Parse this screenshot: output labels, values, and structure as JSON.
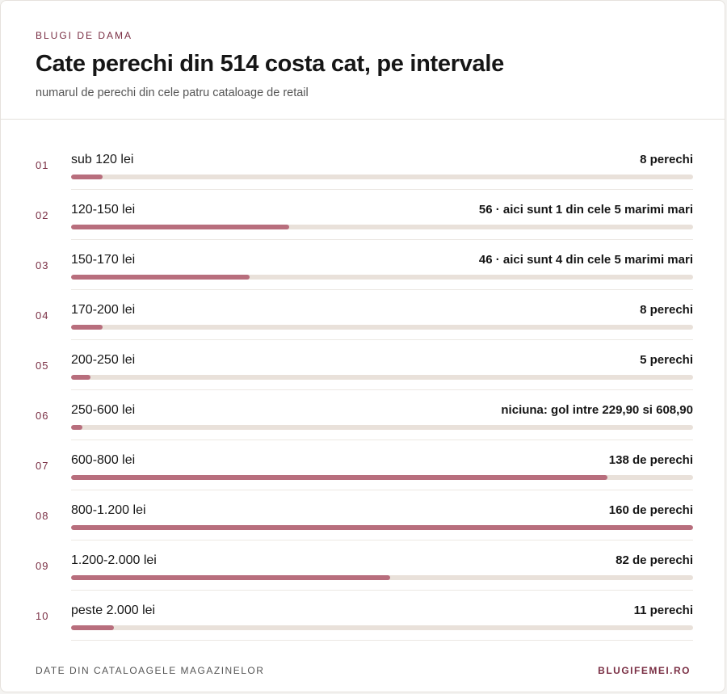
{
  "header": {
    "eyebrow": "BLUGI DE DAMA",
    "title": "Cate perechi din 514 costa cat, pe intervale",
    "subtitle": "numarul de perechi din cele patru cataloage de retail"
  },
  "footer": {
    "source": "DATE DIN CATALOAGELE MAGAZINELOR",
    "brand": "BLUGIFEMEI.RO"
  },
  "colors": {
    "accent": "#7a2f44",
    "bar": "#b86e7d",
    "track": "#e9e1da"
  },
  "chart_data": {
    "type": "bar",
    "orientation": "horizontal",
    "title": "Cate perechi din 514 costa cat, pe intervale",
    "xlim": [
      0,
      160
    ],
    "rows": [
      {
        "index": "01",
        "category": "sub 120 lei",
        "value": 8,
        "value_label": "8 perechi"
      },
      {
        "index": "02",
        "category": "120-150 lei",
        "value": 56,
        "value_label": "56 · aici sunt 1 din cele 5 marimi mari"
      },
      {
        "index": "03",
        "category": "150-170 lei",
        "value": 46,
        "value_label": "46 · aici sunt 4 din cele 5 marimi mari"
      },
      {
        "index": "04",
        "category": "170-200 lei",
        "value": 8,
        "value_label": "8 perechi"
      },
      {
        "index": "05",
        "category": "200-250 lei",
        "value": 5,
        "value_label": "5 perechi"
      },
      {
        "index": "06",
        "category": "250-600 lei",
        "value": 0,
        "value_label": "niciuna: gol intre 229,90 si 608,90"
      },
      {
        "index": "07",
        "category": "600-800 lei",
        "value": 138,
        "value_label": "138 de perechi"
      },
      {
        "index": "08",
        "category": "800-1.200 lei",
        "value": 160,
        "value_label": "160 de perechi"
      },
      {
        "index": "09",
        "category": "1.200-2.000 lei",
        "value": 82,
        "value_label": "82 de perechi"
      },
      {
        "index": "10",
        "category": "peste 2.000 lei",
        "value": 11,
        "value_label": "11 perechi"
      }
    ]
  }
}
